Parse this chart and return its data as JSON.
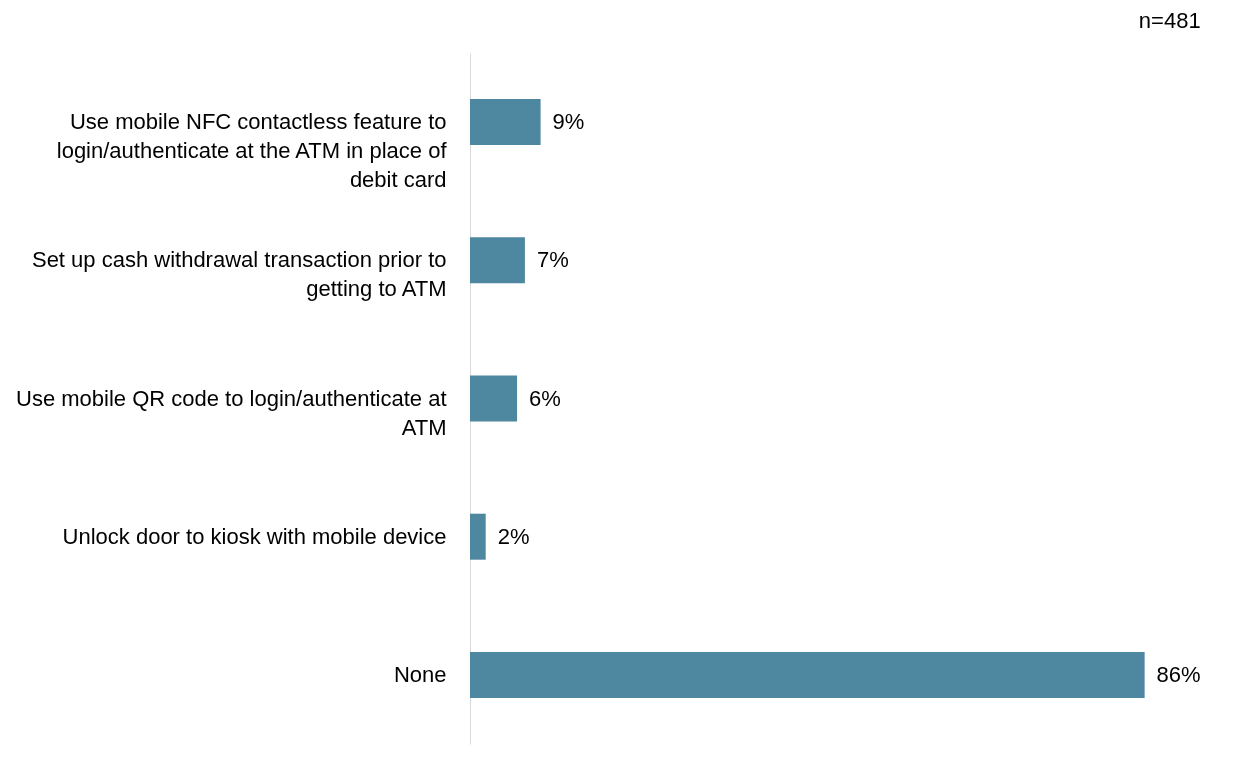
{
  "chart_data": {
    "type": "bar",
    "orientation": "horizontal",
    "categories": [
      "Use mobile NFC contactless feature to login/authenticate at the ATM in place of debit card",
      "Set up cash withdrawal transaction prior to getting to ATM",
      "Use mobile QR code to login/authenticate at ATM",
      "Unlock door to kiosk with mobile device",
      "None"
    ],
    "values": [
      9,
      7,
      6,
      2,
      86
    ],
    "value_labels": [
      "9%",
      "7%",
      "6%",
      "2%",
      "86%"
    ],
    "color": "#4e87a0",
    "annotations": [
      "n=481"
    ],
    "grid": false
  }
}
